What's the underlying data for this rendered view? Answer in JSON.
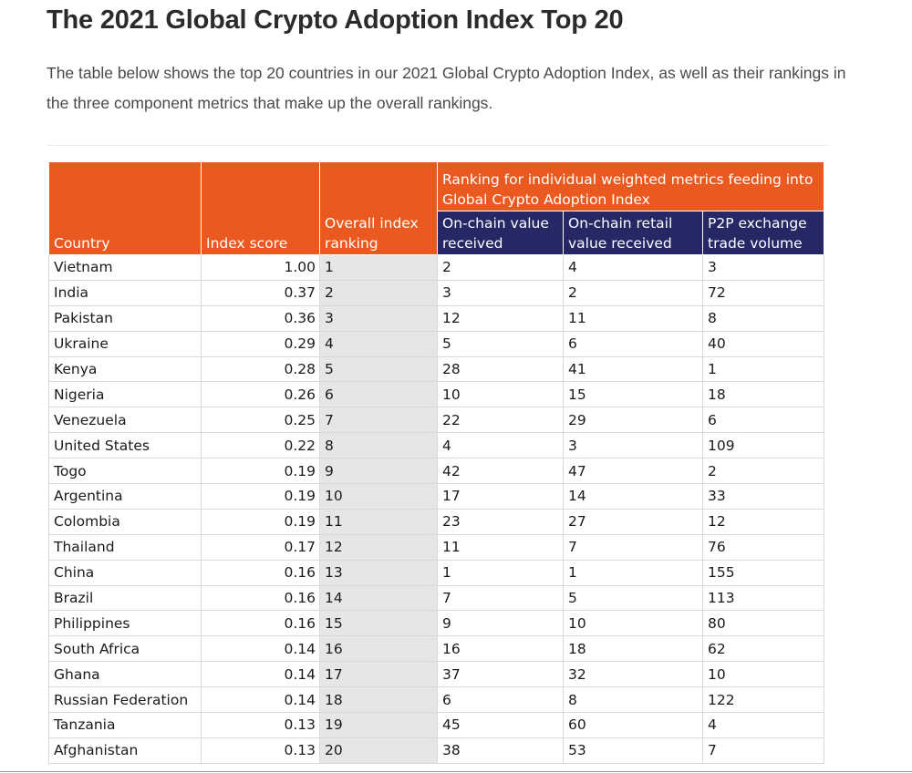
{
  "heading": "The 2021 Global Crypto Adoption Index Top 20",
  "intro": "The table below shows the top 20 countries in our 2021 Global Crypto Adoption Index, as well as their rankings in the three component metrics that make up the overall rankings.",
  "table": {
    "headers": {
      "country": "Country",
      "index_score": "Index score",
      "overall_rank": "Overall index ranking",
      "group": "Ranking for individual weighted metrics feeding into Global Crypto Adoption Index",
      "onchain_value": "On-chain value received",
      "onchain_retail": "On-chain retail value received",
      "p2p": "P2P exchange trade volume"
    },
    "colors": {
      "header_orange": "#ea5a20",
      "header_navy": "#262865",
      "rank_column_bg": "#e6e6e6"
    },
    "rows": [
      {
        "country": "Vietnam",
        "score": "1.00",
        "rank": "1",
        "onchain": "2",
        "retail": "4",
        "p2p": "3"
      },
      {
        "country": "India",
        "score": "0.37",
        "rank": "2",
        "onchain": "3",
        "retail": "2",
        "p2p": "72"
      },
      {
        "country": "Pakistan",
        "score": "0.36",
        "rank": "3",
        "onchain": "12",
        "retail": "11",
        "p2p": "8"
      },
      {
        "country": "Ukraine",
        "score": "0.29",
        "rank": "4",
        "onchain": "5",
        "retail": "6",
        "p2p": "40"
      },
      {
        "country": "Kenya",
        "score": "0.28",
        "rank": "5",
        "onchain": "28",
        "retail": "41",
        "p2p": "1"
      },
      {
        "country": "Nigeria",
        "score": "0.26",
        "rank": "6",
        "onchain": "10",
        "retail": "15",
        "p2p": "18"
      },
      {
        "country": "Venezuela",
        "score": "0.25",
        "rank": "7",
        "onchain": "22",
        "retail": "29",
        "p2p": "6"
      },
      {
        "country": "United States",
        "score": "0.22",
        "rank": "8",
        "onchain": "4",
        "retail": "3",
        "p2p": "109"
      },
      {
        "country": "Togo",
        "score": "0.19",
        "rank": "9",
        "onchain": "42",
        "retail": "47",
        "p2p": "2"
      },
      {
        "country": "Argentina",
        "score": "0.19",
        "rank": "10",
        "onchain": "17",
        "retail": "14",
        "p2p": "33"
      },
      {
        "country": "Colombia",
        "score": "0.19",
        "rank": "11",
        "onchain": "23",
        "retail": "27",
        "p2p": "12"
      },
      {
        "country": "Thailand",
        "score": "0.17",
        "rank": "12",
        "onchain": "11",
        "retail": "7",
        "p2p": "76"
      },
      {
        "country": "China",
        "score": "0.16",
        "rank": "13",
        "onchain": "1",
        "retail": "1",
        "p2p": "155"
      },
      {
        "country": "Brazil",
        "score": "0.16",
        "rank": "14",
        "onchain": "7",
        "retail": "5",
        "p2p": "113"
      },
      {
        "country": "Philippines",
        "score": "0.16",
        "rank": "15",
        "onchain": "9",
        "retail": "10",
        "p2p": "80"
      },
      {
        "country": "South Africa",
        "score": "0.14",
        "rank": "16",
        "onchain": "16",
        "retail": "18",
        "p2p": "62"
      },
      {
        "country": "Ghana",
        "score": "0.14",
        "rank": "17",
        "onchain": "37",
        "retail": "32",
        "p2p": "10"
      },
      {
        "country": "Russian Federation",
        "score": "0.14",
        "rank": "18",
        "onchain": "6",
        "retail": "8",
        "p2p": "122"
      },
      {
        "country": "Tanzania",
        "score": "0.13",
        "rank": "19",
        "onchain": "45",
        "retail": "60",
        "p2p": "4"
      },
      {
        "country": "Afghanistan",
        "score": "0.13",
        "rank": "20",
        "onchain": "38",
        "retail": "53",
        "p2p": "7"
      }
    ]
  }
}
